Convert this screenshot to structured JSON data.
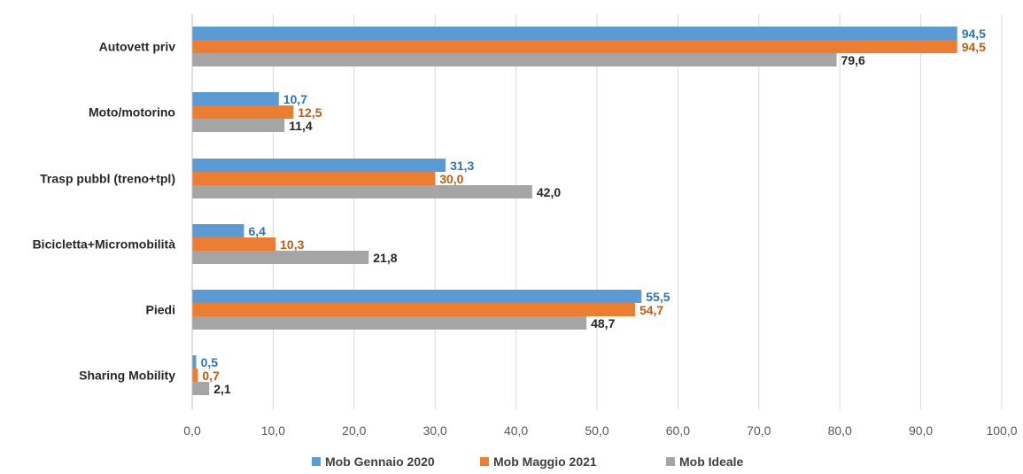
{
  "chart_data": {
    "type": "bar",
    "orientation": "horizontal",
    "categories": [
      "Autovett priv",
      "Moto/motorino",
      "Trasp pubbl (treno+tpl)",
      "Bicicletta+Micromobilità",
      "Piedi",
      "Sharing Mobility"
    ],
    "series": [
      {
        "name": "Mob Gennaio 2020",
        "color": "#5B9BD5",
        "label_color": "#2E75B6",
        "values": [
          94.5,
          10.7,
          31.3,
          6.4,
          55.5,
          0.5
        ],
        "labels": [
          "94,5",
          "10,7",
          "31,3",
          "6,4",
          "55,5",
          "0,5"
        ]
      },
      {
        "name": "Mob Maggio 2021",
        "color": "#ED7D31",
        "label_color": "#C55A11",
        "values": [
          94.5,
          12.5,
          30.0,
          10.3,
          54.7,
          0.7
        ],
        "labels": [
          "94,5",
          "12,5",
          "30,0",
          "10,3",
          "54,7",
          "0,7"
        ]
      },
      {
        "name": "Mob Ideale",
        "color": "#A5A5A5",
        "label_color": "#262626",
        "values": [
          79.6,
          11.4,
          42.0,
          21.8,
          48.7,
          2.1
        ],
        "labels": [
          "79,6",
          "11,4",
          "42,0",
          "21,8",
          "48,7",
          "2,1"
        ]
      }
    ],
    "xlim": [
      0,
      100
    ],
    "xticks": [
      0,
      10,
      20,
      30,
      40,
      50,
      60,
      70,
      80,
      90,
      100
    ],
    "xtick_labels": [
      "0,0",
      "10,0",
      "20,0",
      "30,0",
      "40,0",
      "50,0",
      "60,0",
      "70,0",
      "80,0",
      "90,0",
      "100,0"
    ],
    "grid": true,
    "legend_position": "bottom",
    "title": "",
    "xlabel": "",
    "ylabel": ""
  }
}
